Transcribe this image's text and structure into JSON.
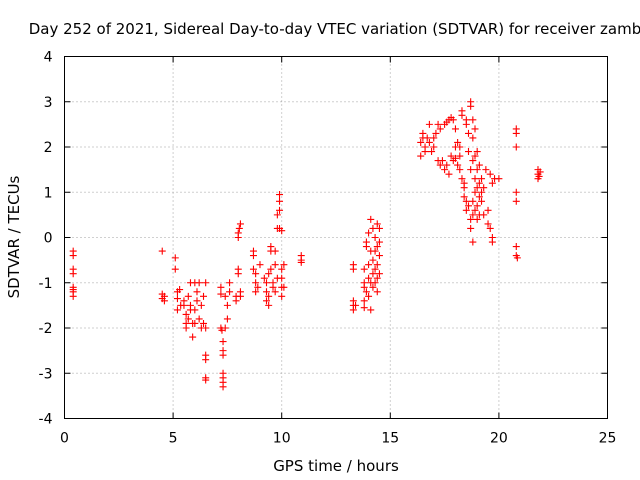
{
  "colors": {
    "series": "#ff0000",
    "grid": "#a0a0a0",
    "axes": "#000000",
    "background": "#ffffff"
  },
  "chart_data": {
    "type": "scatter",
    "title": "Day 252 of 2021, Sidereal Day-to-day VTEC variation (SDTVAR) for receiver zamb",
    "xlabel": "GPS time / hours",
    "ylabel": "SDTVAR / TECUs",
    "xlim": [
      0,
      25
    ],
    "ylim": [
      -4,
      4
    ],
    "xticks": [
      0,
      5,
      10,
      15,
      20,
      25
    ],
    "yticks": [
      -4,
      -3,
      -2,
      -1,
      0,
      1,
      2,
      3,
      4
    ],
    "grid": true,
    "marker": "plus",
    "series": [
      {
        "name": "SDTVAR",
        "color": "#ff0000",
        "points": [
          [
            0.4,
            -0.3
          ],
          [
            0.4,
            -0.4
          ],
          [
            0.4,
            -0.7
          ],
          [
            0.4,
            -0.8
          ],
          [
            0.4,
            -1.1
          ],
          [
            0.4,
            -1.15
          ],
          [
            0.4,
            -1.2
          ],
          [
            0.4,
            -1.3
          ],
          [
            4.5,
            -0.3
          ],
          [
            4.5,
            -1.25
          ],
          [
            4.5,
            -1.35
          ],
          [
            4.6,
            -1.3
          ],
          [
            4.6,
            -1.4
          ],
          [
            5.1,
            -0.45
          ],
          [
            5.1,
            -0.7
          ],
          [
            5.2,
            -1.2
          ],
          [
            5.2,
            -1.35
          ],
          [
            5.2,
            -1.6
          ],
          [
            5.3,
            -1.15
          ],
          [
            5.35,
            -1.5
          ],
          [
            5.5,
            -1.4
          ],
          [
            5.5,
            -1.5
          ],
          [
            5.6,
            -1.7
          ],
          [
            5.6,
            -1.9
          ],
          [
            5.6,
            -2.0
          ],
          [
            5.7,
            -1.8
          ],
          [
            5.7,
            -1.3
          ],
          [
            5.8,
            -1.0
          ],
          [
            5.8,
            -1.5
          ],
          [
            5.8,
            -1.6
          ],
          [
            5.9,
            -1.9
          ],
          [
            5.9,
            -2.2
          ],
          [
            6.0,
            -1.0
          ],
          [
            6.0,
            -1.6
          ],
          [
            6.0,
            -1.9
          ],
          [
            6.1,
            -1.2
          ],
          [
            6.1,
            -1.4
          ],
          [
            6.2,
            -1.0
          ],
          [
            6.2,
            -1.8
          ],
          [
            6.3,
            -1.5
          ],
          [
            6.3,
            -2.0
          ],
          [
            6.4,
            -1.3
          ],
          [
            6.4,
            -1.9
          ],
          [
            6.5,
            -1.0
          ],
          [
            6.5,
            -2.0
          ],
          [
            6.5,
            -2.6
          ],
          [
            6.5,
            -2.7
          ],
          [
            6.5,
            -3.1
          ],
          [
            6.5,
            -3.15
          ],
          [
            7.2,
            -1.1
          ],
          [
            7.2,
            -1.25
          ],
          [
            7.2,
            -2.0
          ],
          [
            7.25,
            -2.05
          ],
          [
            7.3,
            -2.3
          ],
          [
            7.3,
            -2.5
          ],
          [
            7.3,
            -2.6
          ],
          [
            7.3,
            -3.0
          ],
          [
            7.3,
            -3.1
          ],
          [
            7.3,
            -3.2
          ],
          [
            7.3,
            -3.3
          ],
          [
            7.4,
            -2.0
          ],
          [
            7.4,
            -1.3
          ],
          [
            7.5,
            -1.5
          ],
          [
            7.5,
            -1.8
          ],
          [
            7.6,
            -1.2
          ],
          [
            7.6,
            -1.0
          ],
          [
            7.9,
            -1.4
          ],
          [
            7.9,
            -1.3
          ],
          [
            8.0,
            -0.7
          ],
          [
            8.0,
            -0.8
          ],
          [
            8.0,
            0.0
          ],
          [
            8.0,
            0.1
          ],
          [
            8.05,
            0.2
          ],
          [
            8.1,
            0.3
          ],
          [
            8.1,
            -1.2
          ],
          [
            8.1,
            -1.3
          ],
          [
            8.7,
            -0.3
          ],
          [
            8.7,
            -0.4
          ],
          [
            8.7,
            -0.7
          ],
          [
            8.8,
            -0.8
          ],
          [
            8.8,
            -1.0
          ],
          [
            8.8,
            -1.2
          ],
          [
            8.9,
            -1.1
          ],
          [
            9.0,
            -0.6
          ],
          [
            9.2,
            -0.9
          ],
          [
            9.3,
            -1.0
          ],
          [
            9.3,
            -1.2
          ],
          [
            9.3,
            -1.4
          ],
          [
            9.4,
            -1.5
          ],
          [
            9.4,
            -1.3
          ],
          [
            9.4,
            -0.8
          ],
          [
            9.5,
            -0.2
          ],
          [
            9.5,
            -0.3
          ],
          [
            9.5,
            -0.7
          ],
          [
            9.6,
            -1.0
          ],
          [
            9.6,
            -1.1
          ],
          [
            9.7,
            -1.2
          ],
          [
            9.7,
            -0.6
          ],
          [
            9.7,
            -0.3
          ],
          [
            9.8,
            0.2
          ],
          [
            9.8,
            0.5
          ],
          [
            9.8,
            -0.9
          ],
          [
            9.9,
            0.6
          ],
          [
            9.9,
            0.8
          ],
          [
            9.9,
            0.95
          ],
          [
            9.9,
            0.2
          ],
          [
            10.0,
            0.15
          ],
          [
            10.0,
            -0.7
          ],
          [
            10.0,
            -0.9
          ],
          [
            10.0,
            -1.1
          ],
          [
            10.0,
            -1.3
          ],
          [
            10.1,
            -1.1
          ],
          [
            10.1,
            -0.6
          ],
          [
            10.9,
            -0.4
          ],
          [
            10.9,
            -0.5
          ],
          [
            10.9,
            -0.55
          ],
          [
            13.3,
            -0.6
          ],
          [
            13.3,
            -0.7
          ],
          [
            13.3,
            -1.4
          ],
          [
            13.3,
            -1.5
          ],
          [
            13.3,
            -1.6
          ],
          [
            13.4,
            -1.5
          ],
          [
            13.8,
            -0.7
          ],
          [
            13.8,
            -1.0
          ],
          [
            13.8,
            -1.1
          ],
          [
            13.8,
            -1.4
          ],
          [
            13.8,
            -1.55
          ],
          [
            13.9,
            -0.2
          ],
          [
            13.9,
            -0.1
          ],
          [
            13.9,
            -1.2
          ],
          [
            14.0,
            0.1
          ],
          [
            14.0,
            -0.6
          ],
          [
            14.0,
            -0.9
          ],
          [
            14.0,
            -1.3
          ],
          [
            14.1,
            0.4
          ],
          [
            14.1,
            -0.3
          ],
          [
            14.1,
            -1.0
          ],
          [
            14.1,
            -1.6
          ],
          [
            14.2,
            0.2
          ],
          [
            14.2,
            -0.5
          ],
          [
            14.2,
            -0.8
          ],
          [
            14.2,
            -1.1
          ],
          [
            14.3,
            0.0
          ],
          [
            14.3,
            -0.3
          ],
          [
            14.3,
            -0.7
          ],
          [
            14.3,
            -1.0
          ],
          [
            14.4,
            0.3
          ],
          [
            14.4,
            -0.2
          ],
          [
            14.4,
            -0.6
          ],
          [
            14.4,
            -0.9
          ],
          [
            14.4,
            -1.2
          ],
          [
            14.5,
            0.2
          ],
          [
            14.5,
            -0.1
          ],
          [
            14.5,
            -0.4
          ],
          [
            14.5,
            -0.8
          ],
          [
            16.4,
            1.8
          ],
          [
            16.4,
            2.1
          ],
          [
            16.5,
            2.2
          ],
          [
            16.5,
            2.3
          ],
          [
            16.6,
            1.9
          ],
          [
            16.6,
            2.0
          ],
          [
            16.7,
            2.2
          ],
          [
            16.8,
            2.1
          ],
          [
            16.8,
            2.5
          ],
          [
            16.9,
            1.9
          ],
          [
            17.0,
            2.0
          ],
          [
            17.0,
            2.2
          ],
          [
            17.1,
            2.3
          ],
          [
            17.2,
            1.7
          ],
          [
            17.2,
            2.5
          ],
          [
            17.3,
            1.6
          ],
          [
            17.3,
            2.4
          ],
          [
            17.4,
            1.7
          ],
          [
            17.5,
            1.5
          ],
          [
            17.5,
            2.5
          ],
          [
            17.6,
            1.6
          ],
          [
            17.6,
            2.55
          ],
          [
            17.7,
            1.4
          ],
          [
            17.7,
            2.6
          ],
          [
            17.8,
            1.8
          ],
          [
            17.8,
            2.65
          ],
          [
            17.9,
            1.7
          ],
          [
            17.9,
            2.6
          ],
          [
            18.0,
            1.75
          ],
          [
            18.0,
            2.0
          ],
          [
            18.0,
            2.4
          ],
          [
            18.1,
            1.6
          ],
          [
            18.1,
            2.1
          ],
          [
            18.2,
            1.5
          ],
          [
            18.2,
            1.8
          ],
          [
            18.2,
            2.0
          ],
          [
            18.3,
            1.3
          ],
          [
            18.3,
            2.7
          ],
          [
            18.3,
            2.8
          ],
          [
            18.4,
            1.2
          ],
          [
            18.4,
            1.1
          ],
          [
            18.4,
            0.9
          ],
          [
            18.5,
            0.8
          ],
          [
            18.5,
            0.6
          ],
          [
            18.5,
            2.5
          ],
          [
            18.5,
            2.6
          ],
          [
            18.6,
            0.7
          ],
          [
            18.6,
            1.9
          ],
          [
            18.6,
            2.3
          ],
          [
            18.7,
            0.2
          ],
          [
            18.7,
            0.4
          ],
          [
            18.7,
            1.5
          ],
          [
            18.7,
            3.0
          ],
          [
            18.7,
            2.9
          ],
          [
            18.8,
            -0.1
          ],
          [
            18.8,
            0.5
          ],
          [
            18.8,
            0.8
          ],
          [
            18.8,
            1.7
          ],
          [
            18.8,
            2.2
          ],
          [
            18.8,
            2.6
          ],
          [
            18.9,
            0.6
          ],
          [
            18.9,
            1.0
          ],
          [
            18.9,
            1.3
          ],
          [
            18.9,
            1.8
          ],
          [
            18.9,
            2.4
          ],
          [
            19.0,
            0.4
          ],
          [
            19.0,
            0.7
          ],
          [
            19.0,
            1.1
          ],
          [
            19.0,
            1.5
          ],
          [
            19.0,
            1.9
          ],
          [
            19.1,
            0.5
          ],
          [
            19.1,
            0.9
          ],
          [
            19.1,
            1.2
          ],
          [
            19.1,
            1.6
          ],
          [
            19.2,
            0.8
          ],
          [
            19.2,
            1.0
          ],
          [
            19.2,
            1.3
          ],
          [
            19.3,
            1.1
          ],
          [
            19.3,
            0.5
          ],
          [
            19.4,
            1.5
          ],
          [
            19.5,
            0.3
          ],
          [
            19.5,
            0.6
          ],
          [
            19.6,
            1.4
          ],
          [
            19.6,
            0.2
          ],
          [
            19.7,
            -0.1
          ],
          [
            19.7,
            0.0
          ],
          [
            19.7,
            1.2
          ],
          [
            19.8,
            1.3
          ],
          [
            20.0,
            1.3
          ],
          [
            20.8,
            2.3
          ],
          [
            20.8,
            2.4
          ],
          [
            20.8,
            2.0
          ],
          [
            20.8,
            1.0
          ],
          [
            20.8,
            0.8
          ],
          [
            20.8,
            -0.2
          ],
          [
            20.8,
            -0.4
          ],
          [
            20.85,
            -0.45
          ],
          [
            21.8,
            1.5
          ],
          [
            21.8,
            1.4
          ],
          [
            21.8,
            1.3
          ],
          [
            21.85,
            1.35
          ],
          [
            21.9,
            1.45
          ]
        ]
      }
    ]
  }
}
